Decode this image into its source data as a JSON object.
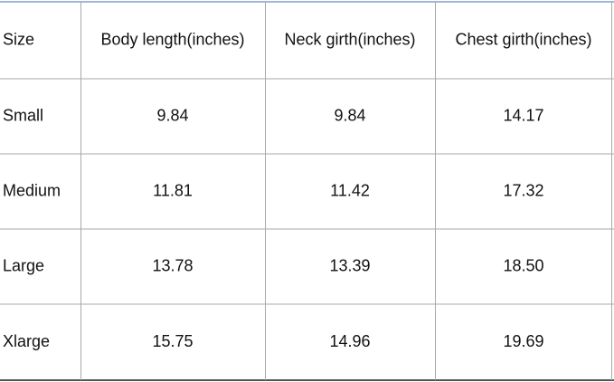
{
  "table": {
    "header": [
      "Size",
      "Body length(inches)",
      "Neck girth(inches)",
      "Chest girth(inches)"
    ],
    "rows": [
      [
        "Small",
        "9.84",
        "9.84",
        "14.17"
      ],
      [
        "Medium",
        "11.81",
        "11.42",
        "17.32"
      ],
      [
        "Large",
        "13.78",
        "13.39",
        "18.50"
      ],
      [
        "Xlarge",
        "15.75",
        "14.96",
        "19.69"
      ]
    ]
  }
}
